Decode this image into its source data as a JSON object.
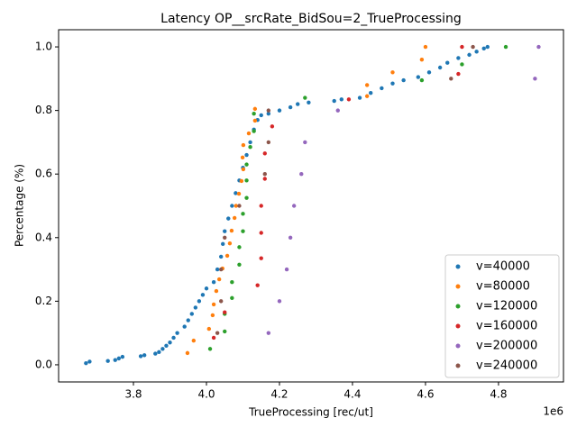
{
  "chart_data": {
    "type": "scatter",
    "title": "Latency OP__srcRate_BidSou=2_TrueProcessing",
    "x_label": "TrueProcessing [rec/ut]",
    "y_label": "Percentage (%)",
    "x_offset_label": "1e6",
    "xlim": [
      3595000,
      4978000
    ],
    "ylim": [
      -0.054,
      1.054
    ],
    "xticks": [
      {
        "value": 3800000,
        "label": "3.8"
      },
      {
        "value": 4000000,
        "label": "4.0"
      },
      {
        "value": 4200000,
        "label": "4.2"
      },
      {
        "value": 4400000,
        "label": "4.4"
      },
      {
        "value": 4600000,
        "label": "4.6"
      },
      {
        "value": 4800000,
        "label": "4.8"
      }
    ],
    "yticks": [
      {
        "value": 0,
        "label": "0.0"
      },
      {
        "value": 0.2,
        "label": "0.2"
      },
      {
        "value": 0.4,
        "label": "0.4"
      },
      {
        "value": 0.6,
        "label": "0.6"
      },
      {
        "value": 0.8,
        "label": "0.8"
      },
      {
        "value": 1,
        "label": "1.0"
      }
    ],
    "grid": false,
    "legend": "lower right",
    "series": [
      {
        "name": "v=40000",
        "color": "#1f77b4",
        "x": [
          3670000,
          3680000,
          3730000,
          3750000,
          3760000,
          3770000,
          3820000,
          3830000,
          3860000,
          3870000,
          3880000,
          3890000,
          3900000,
          3910000,
          3920000,
          3940000,
          3950000,
          3960000,
          3970000,
          3980000,
          3990000,
          4000000,
          4020000,
          4030000,
          4040000,
          4045000,
          4050000,
          4060000,
          4070000,
          4080000,
          4090000,
          4100000,
          4110000,
          4120000,
          4130000,
          4140000,
          4150000,
          4170000,
          4200000,
          4230000,
          4250000,
          4280000,
          4350000,
          4370000,
          4420000,
          4450000,
          4480000,
          4510000,
          4540000,
          4580000,
          4610000,
          4640000,
          4660000,
          4690000,
          4720000,
          4740000,
          4760000,
          4770000
        ],
        "values": [
          0.005,
          0.01,
          0.012,
          0.015,
          0.02,
          0.025,
          0.027,
          0.03,
          0.035,
          0.04,
          0.05,
          0.06,
          0.07,
          0.085,
          0.1,
          0.12,
          0.14,
          0.16,
          0.18,
          0.2,
          0.22,
          0.24,
          0.26,
          0.3,
          0.34,
          0.38,
          0.42,
          0.46,
          0.5,
          0.54,
          0.58,
          0.62,
          0.66,
          0.7,
          0.74,
          0.77,
          0.785,
          0.79,
          0.8,
          0.81,
          0.82,
          0.825,
          0.83,
          0.835,
          0.84,
          0.855,
          0.87,
          0.885,
          0.895,
          0.905,
          0.92,
          0.935,
          0.95,
          0.965,
          0.975,
          0.985,
          0.995,
          1.0
        ]
      },
      {
        "name": "v=80000",
        "color": "#ff7f0e",
        "x": [
          3948000,
          3965000,
          4007000,
          4017000,
          4020000,
          4027000,
          4035000,
          4044000,
          4057000,
          4064000,
          4069000,
          4077000,
          4081000,
          4089000,
          4096000,
          4101000,
          4099000,
          4101000,
          4116000,
          4133000,
          4133000,
          4440000,
          4440000,
          4510000,
          4590000,
          4600000
        ],
        "values": [
          0.037,
          0.076,
          0.113,
          0.156,
          0.19,
          0.232,
          0.269,
          0.303,
          0.343,
          0.382,
          0.422,
          0.462,
          0.5,
          0.538,
          0.578,
          0.615,
          0.652,
          0.691,
          0.728,
          0.768,
          0.805,
          0.845,
          0.88,
          0.92,
          0.96,
          1.0
        ]
      },
      {
        "name": "v=120000",
        "color": "#2ca02c",
        "x": [
          4010000,
          4050000,
          4050000,
          4070000,
          4070000,
          4090000,
          4090000,
          4100000,
          4100000,
          4110000,
          4110000,
          4110000,
          4120000,
          4130000,
          4130000,
          4270000,
          4590000,
          4700000,
          4820000
        ],
        "values": [
          0.05,
          0.105,
          0.16,
          0.21,
          0.26,
          0.315,
          0.37,
          0.42,
          0.475,
          0.525,
          0.58,
          0.63,
          0.685,
          0.735,
          0.79,
          0.84,
          0.895,
          0.945,
          1.0
        ]
      },
      {
        "name": "v=160000",
        "color": "#d62728",
        "x": [
          4020000,
          4050000,
          4140000,
          4150000,
          4150000,
          4150000,
          4160000,
          4160000,
          4180000,
          4390000,
          4690000,
          4700000
        ],
        "values": [
          0.085,
          0.165,
          0.25,
          0.335,
          0.415,
          0.5,
          0.585,
          0.665,
          0.75,
          0.835,
          0.915,
          1.0
        ]
      },
      {
        "name": "v=200000",
        "color": "#9467bd",
        "x": [
          4170000,
          4200000,
          4220000,
          4230000,
          4240000,
          4260000,
          4270000,
          4360000,
          4900000,
          4910000
        ],
        "values": [
          0.1,
          0.2,
          0.3,
          0.4,
          0.5,
          0.6,
          0.7,
          0.8,
          0.9,
          1.0
        ]
      },
      {
        "name": "v=240000",
        "color": "#8c564b",
        "x": [
          4030000,
          4040000,
          4040000,
          4050000,
          4090000,
          4160000,
          4170000,
          4170000,
          4670000,
          4730000
        ],
        "values": [
          0.1,
          0.2,
          0.3,
          0.4,
          0.5,
          0.6,
          0.7,
          0.8,
          0.9,
          1.0
        ]
      }
    ]
  }
}
